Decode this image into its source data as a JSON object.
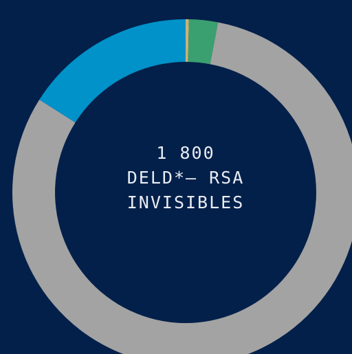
{
  "chart_data": {
    "type": "pie",
    "style": "donut",
    "slices": [
      {
        "value": 0.3,
        "color": "#c9b27a"
      },
      {
        "value": 2.7,
        "color": "#3aa070"
      },
      {
        "value": 81.0,
        "color": "#a3a3a3"
      },
      {
        "value": 16.0,
        "color": "#0092c9"
      }
    ],
    "center_text": [
      "1 800",
      "DELD*— RSA",
      "INVISIBLES"
    ],
    "colors": {
      "background": "#03204a",
      "text": "#e9edf3"
    }
  }
}
